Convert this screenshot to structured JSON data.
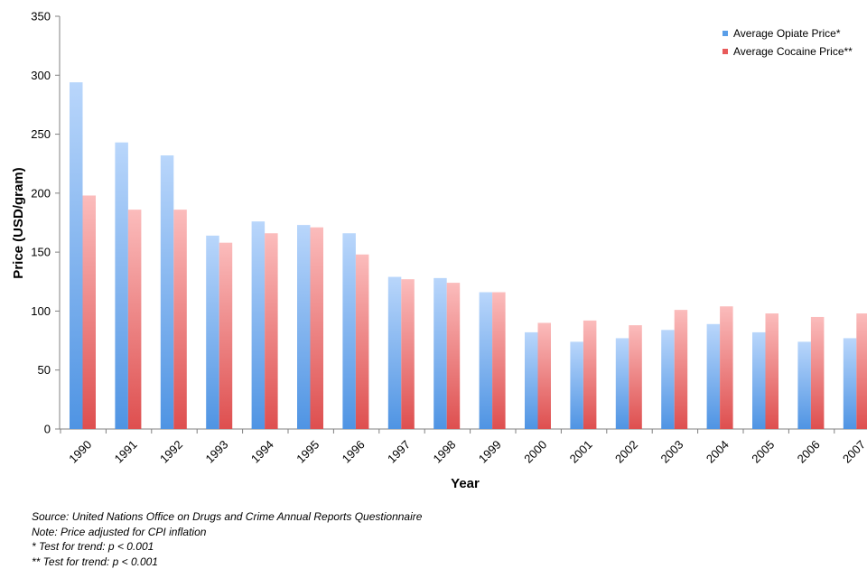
{
  "chart_data": {
    "type": "bar",
    "title": "",
    "xlabel": "Year",
    "ylabel": "Price (USD/gram)",
    "ylim": [
      0,
      350
    ],
    "yticks": [
      "0",
      "50",
      "100",
      "150",
      "200",
      "250",
      "300",
      "350"
    ],
    "categories": [
      "1990",
      "1991",
      "1992",
      "1993",
      "1994",
      "1995",
      "1996",
      "1997",
      "1998",
      "1999",
      "2000",
      "2001",
      "2002",
      "2003",
      "2004",
      "2005",
      "2006",
      "2007"
    ],
    "series": [
      {
        "name": "Average Opiate Price*",
        "color": "#5a9ee8",
        "values": [
          294,
          243,
          232,
          164,
          176,
          173,
          166,
          129,
          128,
          116,
          82,
          74,
          77,
          84,
          89,
          82,
          74,
          77
        ]
      },
      {
        "name": "Average Cocaine Price**",
        "color": "#e85a5a",
        "values": [
          198,
          186,
          186,
          158,
          166,
          171,
          148,
          127,
          124,
          116,
          90,
          92,
          88,
          101,
          104,
          98,
          95,
          98
        ]
      }
    ],
    "legend_position": "top-right",
    "grid": false
  },
  "notes": [
    "Source: United Nations Office on Drugs and Crime Annual Reports Questionnaire",
    "Note: Price adjusted for CPI inflation",
    "* Test for trend: p < 0.001",
    "** Test for trend: p < 0.001"
  ]
}
